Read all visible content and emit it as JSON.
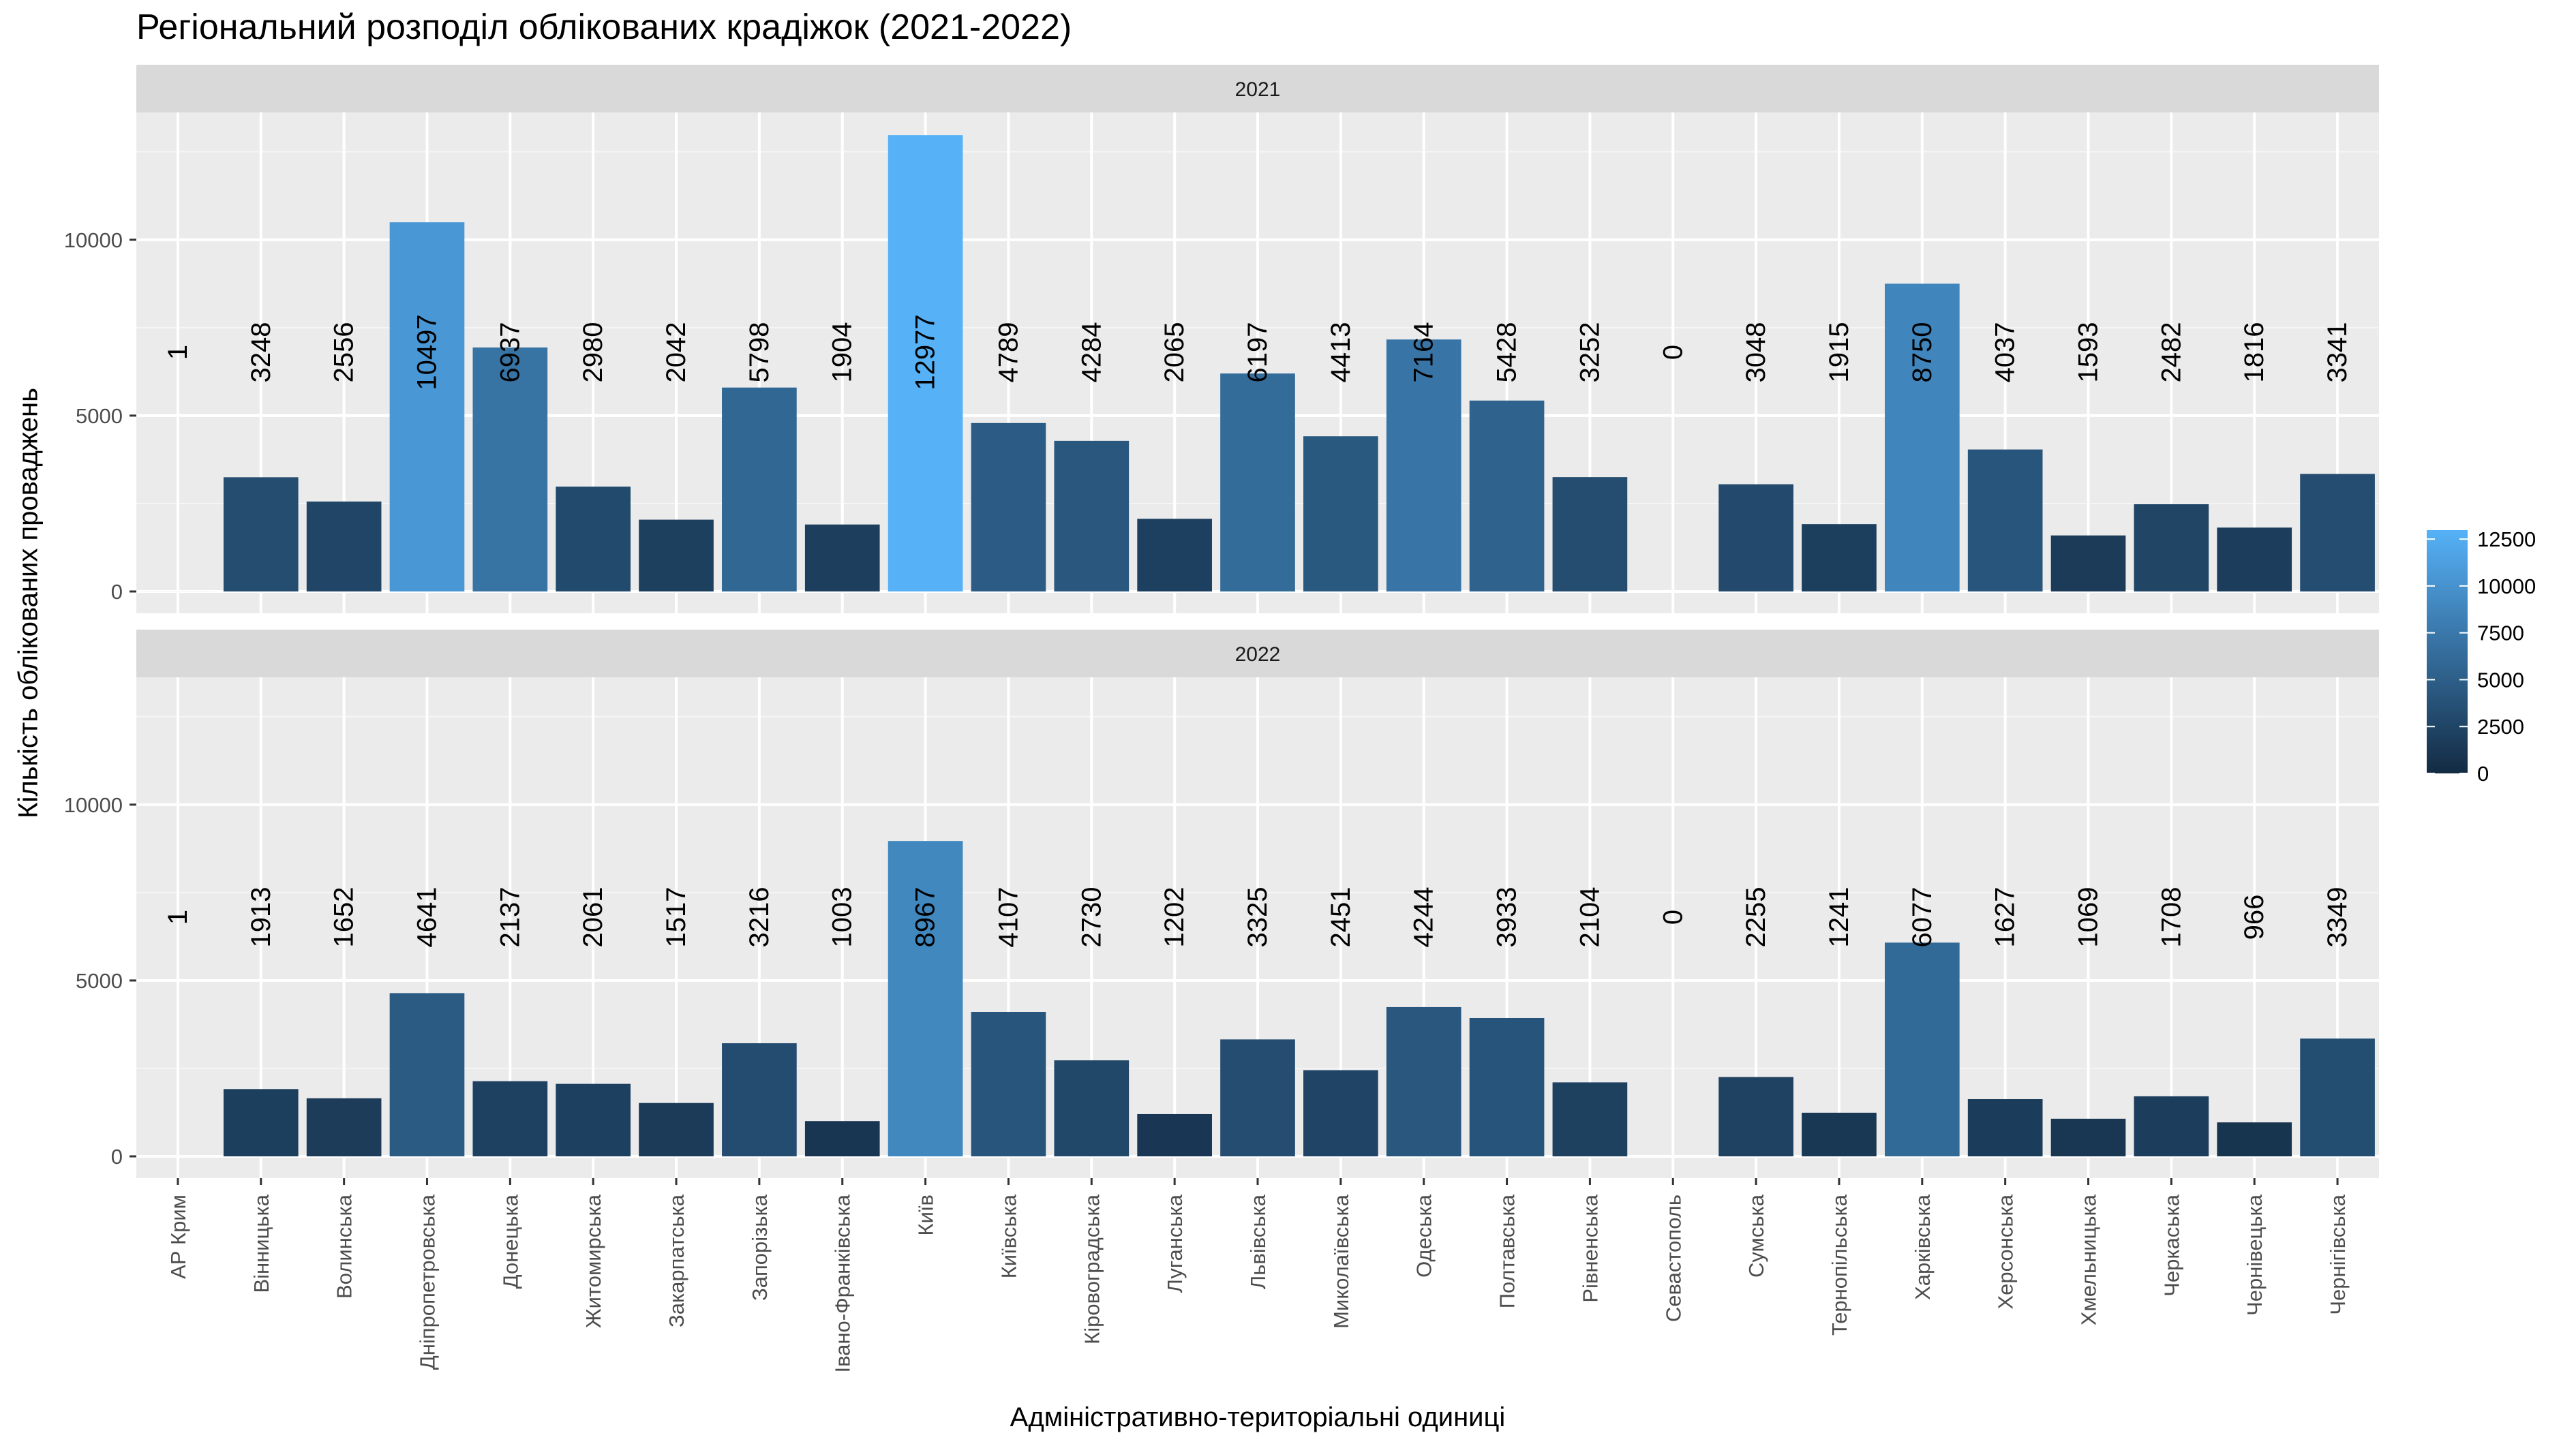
{
  "chart_data": {
    "type": "bar",
    "title": "Регіональний розподіл облікованих крадіжок (2021-2022)",
    "xlabel": "Адміністративно-територіальні одиниці",
    "ylabel": "Кількість облікованих проваджень",
    "categories": [
      "АР Крим",
      "Вінницька",
      "Волинська",
      "Дніпропетровська",
      "Донецька",
      "Житомирська",
      "Закарпатська",
      "Запорізька",
      "Івано-Франківська",
      "Київ",
      "Київська",
      "Кіровоградська",
      "Луганська",
      "Львівська",
      "Миколаївська",
      "Одеська",
      "Полтавська",
      "Рівненська",
      "Севастополь",
      "Сумська",
      "Тернопільська",
      "Харківська",
      "Херсонська",
      "Хмельницька",
      "Черкаська",
      "Чернівецька",
      "Чернігівська"
    ],
    "facets": [
      {
        "label": "2021",
        "values": [
          1,
          3248,
          2556,
          10497,
          6937,
          2980,
          2042,
          5798,
          1904,
          12977,
          4789,
          4284,
          2065,
          6197,
          4413,
          7164,
          5428,
          3252,
          0,
          3048,
          1915,
          8750,
          4037,
          1593,
          2482,
          1816,
          3341
        ]
      },
      {
        "label": "2022",
        "values": [
          1,
          1913,
          1652,
          4641,
          2137,
          2061,
          1517,
          3216,
          1003,
          8967,
          4107,
          2730,
          1202,
          3325,
          2451,
          4244,
          3933,
          2104,
          0,
          2255,
          1241,
          6077,
          1627,
          1069,
          1708,
          966,
          3349
        ]
      }
    ],
    "y_ticks": [
      0,
      5000,
      10000
    ],
    "ylim": [
      0,
      13600
    ],
    "legend": {
      "position": "right",
      "ticks": [
        0,
        2500,
        5000,
        7500,
        10000,
        12500
      ]
    },
    "color_scale": {
      "low": "#132B43",
      "high": "#56B1F7",
      "min": 0,
      "max": 12977
    },
    "panel_background": "#EBEBEB",
    "strip_background": "#D9D9D9",
    "grid": true
  }
}
